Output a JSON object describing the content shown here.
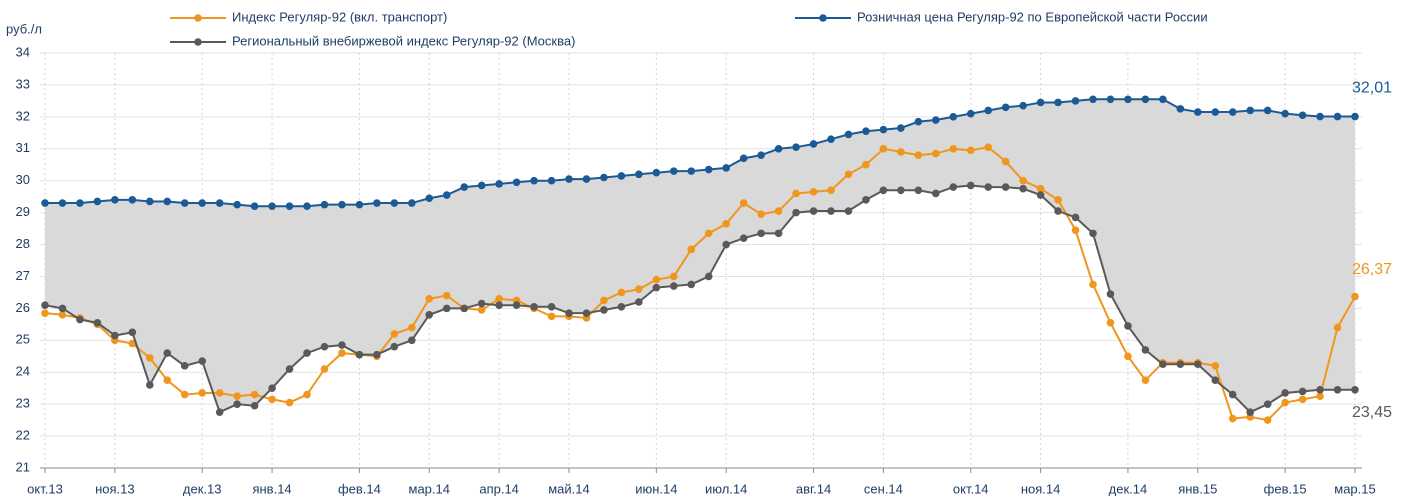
{
  "chart_data": {
    "type": "line",
    "y_unit": "руб./л",
    "categories": [
      "окт.13",
      null,
      null,
      null,
      "ноя.13",
      null,
      null,
      null,
      null,
      "дек.13",
      null,
      null,
      null,
      "янв.14",
      null,
      null,
      null,
      null,
      "фев.14",
      null,
      null,
      null,
      "мар.14",
      null,
      null,
      null,
      "апр.14",
      null,
      null,
      null,
      "май.14",
      null,
      null,
      null,
      null,
      "июн.14",
      null,
      null,
      null,
      "июл.14",
      null,
      null,
      null,
      null,
      "авг.14",
      null,
      null,
      null,
      "сен.14",
      null,
      null,
      null,
      null,
      "окт.14",
      null,
      null,
      null,
      "ноя.14",
      null,
      null,
      null,
      null,
      "дек.14",
      null,
      null,
      null,
      "янв.15",
      null,
      null,
      null,
      null,
      "фев.15",
      null,
      null,
      null,
      "мар.15"
    ],
    "series": [
      {
        "name": "Индекс Регуляр-92 (вкл. транспорт)",
        "color": "#f0961e",
        "end_label": "26,37",
        "values": [
          25.85,
          25.8,
          25.7,
          25.5,
          25.0,
          24.9,
          24.45,
          23.75,
          23.3,
          23.35,
          23.35,
          23.25,
          23.3,
          23.15,
          23.05,
          23.3,
          24.1,
          24.6,
          24.55,
          24.5,
          25.2,
          25.4,
          26.3,
          26.4,
          26.0,
          25.95,
          26.3,
          26.25,
          26.0,
          25.75,
          25.75,
          25.7,
          26.25,
          26.5,
          26.6,
          26.9,
          27.0,
          27.85,
          28.35,
          28.65,
          29.3,
          28.95,
          29.05,
          29.6,
          29.65,
          29.7,
          30.2,
          30.5,
          31.0,
          30.9,
          30.8,
          30.85,
          31.0,
          30.95,
          31.05,
          30.6,
          30.0,
          29.75,
          29.4,
          28.45,
          26.75,
          25.55,
          24.5,
          23.75,
          24.3,
          24.3,
          24.3,
          24.2,
          22.55,
          22.6,
          22.5,
          23.05,
          23.15,
          23.25,
          25.4,
          26.37
        ]
      },
      {
        "name": "Региональный внебиржевой индекс Регуляр-92 (Москва)",
        "color": "#595959",
        "end_label": "23,45",
        "values": [
          26.1,
          26.0,
          25.65,
          25.55,
          25.15,
          25.25,
          23.6,
          24.6,
          24.2,
          24.35,
          22.75,
          23.0,
          22.95,
          23.5,
          24.1,
          24.6,
          24.8,
          24.85,
          24.55,
          24.55,
          24.8,
          25.0,
          25.8,
          26.0,
          26.0,
          26.15,
          26.1,
          26.1,
          26.05,
          26.05,
          25.85,
          25.85,
          25.95,
          26.05,
          26.2,
          26.65,
          26.7,
          26.75,
          27.0,
          28.0,
          28.2,
          28.35,
          28.35,
          29.0,
          29.05,
          29.05,
          29.05,
          29.4,
          29.7,
          29.7,
          29.7,
          29.6,
          29.8,
          29.85,
          29.8,
          29.8,
          29.75,
          29.55,
          29.05,
          28.85,
          28.35,
          26.45,
          25.45,
          24.7,
          24.25,
          24.25,
          24.25,
          23.75,
          23.3,
          22.75,
          23.0,
          23.35,
          23.4,
          23.45,
          23.45,
          23.45
        ]
      },
      {
        "name": "Розничная цена Регуляр-92 по Европейской части России",
        "color": "#1c5a96",
        "end_label": "32,01",
        "values": [
          29.3,
          29.3,
          29.3,
          29.35,
          29.4,
          29.4,
          29.35,
          29.35,
          29.3,
          29.3,
          29.3,
          29.25,
          29.2,
          29.2,
          29.2,
          29.2,
          29.25,
          29.25,
          29.25,
          29.3,
          29.3,
          29.3,
          29.45,
          29.55,
          29.8,
          29.85,
          29.9,
          29.95,
          30.0,
          30.0,
          30.05,
          30.05,
          30.1,
          30.15,
          30.2,
          30.25,
          30.3,
          30.3,
          30.35,
          30.4,
          30.7,
          30.8,
          31.0,
          31.05,
          31.15,
          31.3,
          31.45,
          31.55,
          31.6,
          31.65,
          31.85,
          31.9,
          32.0,
          32.1,
          32.2,
          32.3,
          32.35,
          32.45,
          32.45,
          32.5,
          32.55,
          32.55,
          32.55,
          32.55,
          32.55,
          32.25,
          32.15,
          32.15,
          32.15,
          32.2,
          32.2,
          32.1,
          32.05,
          32.01,
          32.01,
          32.01
        ]
      }
    ],
    "ylim": [
      21,
      34
    ],
    "yticks": [
      21,
      22,
      23,
      24,
      25,
      26,
      27,
      28,
      29,
      30,
      31,
      32,
      33,
      34
    ],
    "grid": true
  }
}
